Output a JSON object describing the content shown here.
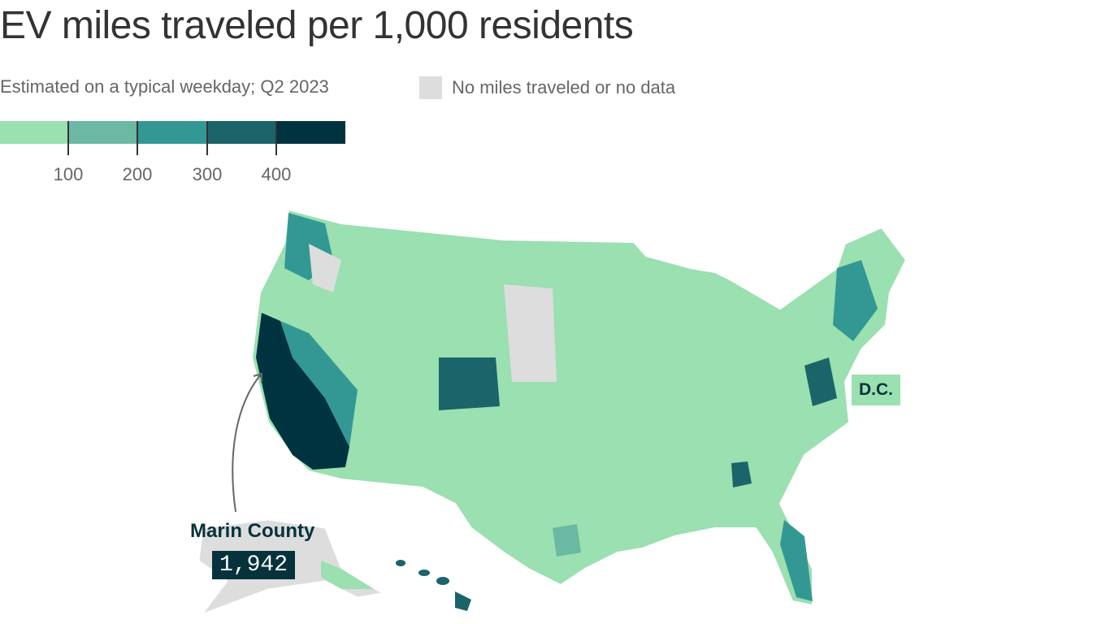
{
  "title": "EV miles traveled per 1,000 residents",
  "subtitle": "Estimated on a typical weekday; Q2 2023",
  "no_data_label": "No miles traveled or no data",
  "no_data_color": "#dddddd",
  "legend": {
    "colors": [
      "#9ae0b0",
      "#6bb9a2",
      "#339894",
      "#1b6469",
      "#003340"
    ],
    "ticks": [
      "100",
      "200",
      "300",
      "400"
    ]
  },
  "annotations": {
    "dc": "D.C.",
    "marin_name": "Marin County",
    "marin_value": "1,942"
  }
}
